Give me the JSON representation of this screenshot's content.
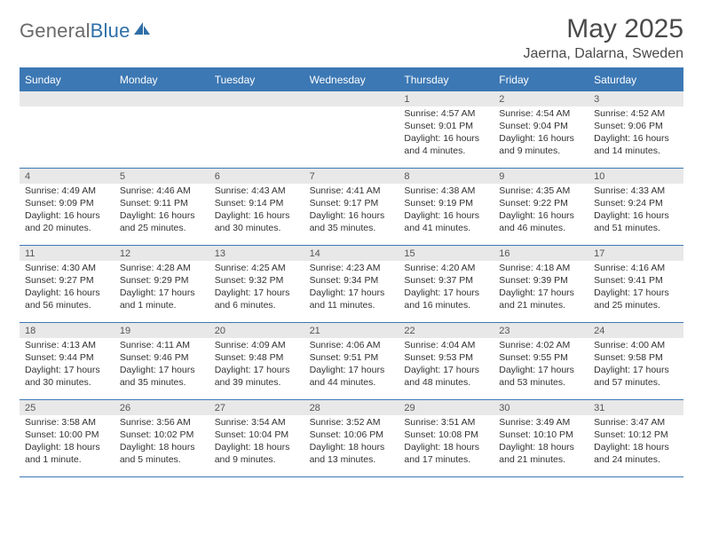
{
  "logo": {
    "word1": "General",
    "word2": "Blue"
  },
  "title": "May 2025",
  "location": "Jaerna, Dalarna, Sweden",
  "colors": {
    "header_blue": "#3c78b4",
    "daynum_bg": "#e8e8e8",
    "text": "#333333",
    "logo_gray": "#6a6a6a",
    "logo_blue": "#2f6fa7"
  },
  "dow": [
    "Sunday",
    "Monday",
    "Tuesday",
    "Wednesday",
    "Thursday",
    "Friday",
    "Saturday"
  ],
  "weeks": [
    [
      {
        "n": "",
        "sr": "",
        "ss": "",
        "dl1": "",
        "dl2": ""
      },
      {
        "n": "",
        "sr": "",
        "ss": "",
        "dl1": "",
        "dl2": ""
      },
      {
        "n": "",
        "sr": "",
        "ss": "",
        "dl1": "",
        "dl2": ""
      },
      {
        "n": "",
        "sr": "",
        "ss": "",
        "dl1": "",
        "dl2": ""
      },
      {
        "n": "1",
        "sr": "Sunrise: 4:57 AM",
        "ss": "Sunset: 9:01 PM",
        "dl1": "Daylight: 16 hours",
        "dl2": "and 4 minutes."
      },
      {
        "n": "2",
        "sr": "Sunrise: 4:54 AM",
        "ss": "Sunset: 9:04 PM",
        "dl1": "Daylight: 16 hours",
        "dl2": "and 9 minutes."
      },
      {
        "n": "3",
        "sr": "Sunrise: 4:52 AM",
        "ss": "Sunset: 9:06 PM",
        "dl1": "Daylight: 16 hours",
        "dl2": "and 14 minutes."
      }
    ],
    [
      {
        "n": "4",
        "sr": "Sunrise: 4:49 AM",
        "ss": "Sunset: 9:09 PM",
        "dl1": "Daylight: 16 hours",
        "dl2": "and 20 minutes."
      },
      {
        "n": "5",
        "sr": "Sunrise: 4:46 AM",
        "ss": "Sunset: 9:11 PM",
        "dl1": "Daylight: 16 hours",
        "dl2": "and 25 minutes."
      },
      {
        "n": "6",
        "sr": "Sunrise: 4:43 AM",
        "ss": "Sunset: 9:14 PM",
        "dl1": "Daylight: 16 hours",
        "dl2": "and 30 minutes."
      },
      {
        "n": "7",
        "sr": "Sunrise: 4:41 AM",
        "ss": "Sunset: 9:17 PM",
        "dl1": "Daylight: 16 hours",
        "dl2": "and 35 minutes."
      },
      {
        "n": "8",
        "sr": "Sunrise: 4:38 AM",
        "ss": "Sunset: 9:19 PM",
        "dl1": "Daylight: 16 hours",
        "dl2": "and 41 minutes."
      },
      {
        "n": "9",
        "sr": "Sunrise: 4:35 AM",
        "ss": "Sunset: 9:22 PM",
        "dl1": "Daylight: 16 hours",
        "dl2": "and 46 minutes."
      },
      {
        "n": "10",
        "sr": "Sunrise: 4:33 AM",
        "ss": "Sunset: 9:24 PM",
        "dl1": "Daylight: 16 hours",
        "dl2": "and 51 minutes."
      }
    ],
    [
      {
        "n": "11",
        "sr": "Sunrise: 4:30 AM",
        "ss": "Sunset: 9:27 PM",
        "dl1": "Daylight: 16 hours",
        "dl2": "and 56 minutes."
      },
      {
        "n": "12",
        "sr": "Sunrise: 4:28 AM",
        "ss": "Sunset: 9:29 PM",
        "dl1": "Daylight: 17 hours",
        "dl2": "and 1 minute."
      },
      {
        "n": "13",
        "sr": "Sunrise: 4:25 AM",
        "ss": "Sunset: 9:32 PM",
        "dl1": "Daylight: 17 hours",
        "dl2": "and 6 minutes."
      },
      {
        "n": "14",
        "sr": "Sunrise: 4:23 AM",
        "ss": "Sunset: 9:34 PM",
        "dl1": "Daylight: 17 hours",
        "dl2": "and 11 minutes."
      },
      {
        "n": "15",
        "sr": "Sunrise: 4:20 AM",
        "ss": "Sunset: 9:37 PM",
        "dl1": "Daylight: 17 hours",
        "dl2": "and 16 minutes."
      },
      {
        "n": "16",
        "sr": "Sunrise: 4:18 AM",
        "ss": "Sunset: 9:39 PM",
        "dl1": "Daylight: 17 hours",
        "dl2": "and 21 minutes."
      },
      {
        "n": "17",
        "sr": "Sunrise: 4:16 AM",
        "ss": "Sunset: 9:41 PM",
        "dl1": "Daylight: 17 hours",
        "dl2": "and 25 minutes."
      }
    ],
    [
      {
        "n": "18",
        "sr": "Sunrise: 4:13 AM",
        "ss": "Sunset: 9:44 PM",
        "dl1": "Daylight: 17 hours",
        "dl2": "and 30 minutes."
      },
      {
        "n": "19",
        "sr": "Sunrise: 4:11 AM",
        "ss": "Sunset: 9:46 PM",
        "dl1": "Daylight: 17 hours",
        "dl2": "and 35 minutes."
      },
      {
        "n": "20",
        "sr": "Sunrise: 4:09 AM",
        "ss": "Sunset: 9:48 PM",
        "dl1": "Daylight: 17 hours",
        "dl2": "and 39 minutes."
      },
      {
        "n": "21",
        "sr": "Sunrise: 4:06 AM",
        "ss": "Sunset: 9:51 PM",
        "dl1": "Daylight: 17 hours",
        "dl2": "and 44 minutes."
      },
      {
        "n": "22",
        "sr": "Sunrise: 4:04 AM",
        "ss": "Sunset: 9:53 PM",
        "dl1": "Daylight: 17 hours",
        "dl2": "and 48 minutes."
      },
      {
        "n": "23",
        "sr": "Sunrise: 4:02 AM",
        "ss": "Sunset: 9:55 PM",
        "dl1": "Daylight: 17 hours",
        "dl2": "and 53 minutes."
      },
      {
        "n": "24",
        "sr": "Sunrise: 4:00 AM",
        "ss": "Sunset: 9:58 PM",
        "dl1": "Daylight: 17 hours",
        "dl2": "and 57 minutes."
      }
    ],
    [
      {
        "n": "25",
        "sr": "Sunrise: 3:58 AM",
        "ss": "Sunset: 10:00 PM",
        "dl1": "Daylight: 18 hours",
        "dl2": "and 1 minute."
      },
      {
        "n": "26",
        "sr": "Sunrise: 3:56 AM",
        "ss": "Sunset: 10:02 PM",
        "dl1": "Daylight: 18 hours",
        "dl2": "and 5 minutes."
      },
      {
        "n": "27",
        "sr": "Sunrise: 3:54 AM",
        "ss": "Sunset: 10:04 PM",
        "dl1": "Daylight: 18 hours",
        "dl2": "and 9 minutes."
      },
      {
        "n": "28",
        "sr": "Sunrise: 3:52 AM",
        "ss": "Sunset: 10:06 PM",
        "dl1": "Daylight: 18 hours",
        "dl2": "and 13 minutes."
      },
      {
        "n": "29",
        "sr": "Sunrise: 3:51 AM",
        "ss": "Sunset: 10:08 PM",
        "dl1": "Daylight: 18 hours",
        "dl2": "and 17 minutes."
      },
      {
        "n": "30",
        "sr": "Sunrise: 3:49 AM",
        "ss": "Sunset: 10:10 PM",
        "dl1": "Daylight: 18 hours",
        "dl2": "and 21 minutes."
      },
      {
        "n": "31",
        "sr": "Sunrise: 3:47 AM",
        "ss": "Sunset: 10:12 PM",
        "dl1": "Daylight: 18 hours",
        "dl2": "and 24 minutes."
      }
    ]
  ]
}
